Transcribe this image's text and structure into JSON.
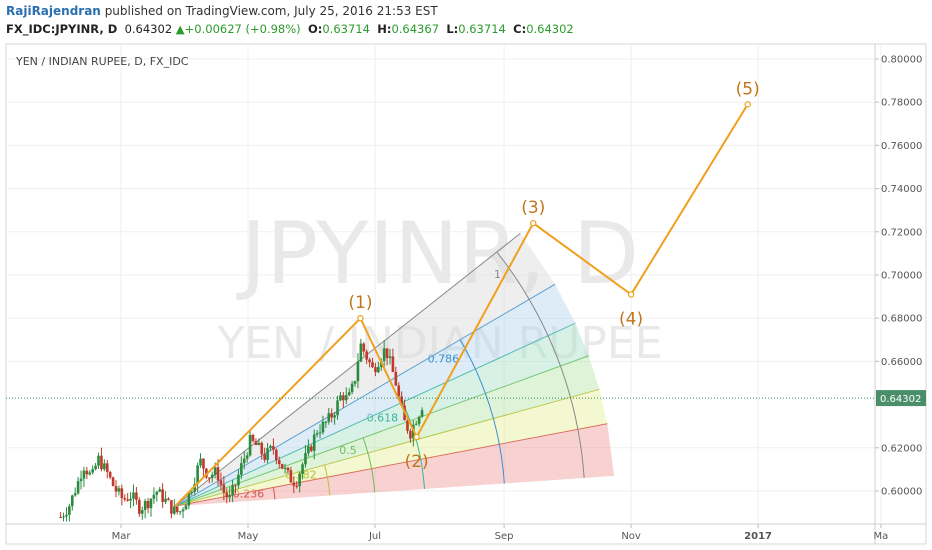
{
  "header": {
    "author": "RajiRajendran",
    "published_text": "published on TradingView.com, July 25, 2016 21:53 EST",
    "symbol": "FX_IDC:JPYINR, D",
    "last": "0.64302",
    "change": "+0.00627 (+0.98%)",
    "o_label": "O:",
    "o_value": "0.63714",
    "h_label": "H:",
    "h_value": "0.64367",
    "l_label": "L:",
    "l_value": "0.63714",
    "c_label": "C:",
    "c_value": "0.64302"
  },
  "pane": {
    "title": "YEN / INDIAN RUPEE, D, FX_IDC",
    "watermark_symbol": "JPYINR, D",
    "watermark_name": "YEN / INDIAN RUPEE"
  },
  "colors": {
    "up": "#2b8a3e",
    "down": "#c0392b",
    "wave": "#f0a01e",
    "price_line": "#2e8b57",
    "price_tag": "#4a8f6a"
  },
  "chart_data": {
    "type": "candlestick",
    "title": "YEN / INDIAN RUPEE, D, FX_IDC",
    "x_ticks": [
      "Mar",
      "May",
      "Jul",
      "Sep",
      "Nov",
      "2017",
      "Ma"
    ],
    "y_ticks": [
      "0.80000",
      "0.78000",
      "0.76000",
      "0.74000",
      "0.72000",
      "0.70000",
      "0.68000",
      "0.66000",
      "0.62000",
      "0.60000"
    ],
    "ylim": [
      0.585,
      0.805
    ],
    "last_price": "0.64302",
    "price_path": [
      [
        "2016-02-01",
        0.588
      ],
      [
        "2016-02-05",
        0.593
      ],
      [
        "2016-02-09",
        0.603
      ],
      [
        "2016-02-12",
        0.612
      ],
      [
        "2016-02-16",
        0.606
      ],
      [
        "2016-02-19",
        0.615
      ],
      [
        "2016-02-23",
        0.609
      ],
      [
        "2016-02-27",
        0.601
      ],
      [
        "2016-03-02",
        0.596
      ],
      [
        "2016-03-06",
        0.598
      ],
      [
        "2016-03-10",
        0.592
      ],
      [
        "2016-03-14",
        0.595
      ],
      [
        "2016-03-18",
        0.6
      ],
      [
        "2016-03-22",
        0.596
      ],
      [
        "2016-03-26",
        0.591
      ],
      [
        "2016-03-29",
        0.59
      ],
      [
        "2016-04-01",
        0.595
      ],
      [
        "2016-04-04",
        0.602
      ],
      [
        "2016-04-08",
        0.614
      ],
      [
        "2016-04-12",
        0.607
      ],
      [
        "2016-04-16",
        0.609
      ],
      [
        "2016-04-19",
        0.6
      ],
      [
        "2016-04-22",
        0.596
      ],
      [
        "2016-04-25",
        0.603
      ],
      [
        "2016-04-28",
        0.612
      ],
      [
        "2016-05-02",
        0.623
      ],
      [
        "2016-05-05",
        0.621
      ],
      [
        "2016-05-09",
        0.616
      ],
      [
        "2016-05-13",
        0.62
      ],
      [
        "2016-05-17",
        0.612
      ],
      [
        "2016-05-21",
        0.606
      ],
      [
        "2016-05-24",
        0.604
      ],
      [
        "2016-05-27",
        0.612
      ],
      [
        "2016-05-31",
        0.62
      ],
      [
        "2016-06-03",
        0.628
      ],
      [
        "2016-06-07",
        0.631
      ],
      [
        "2016-06-11",
        0.636
      ],
      [
        "2016-06-15",
        0.645
      ],
      [
        "2016-06-18",
        0.642
      ],
      [
        "2016-06-21",
        0.65
      ],
      [
        "2016-06-24",
        0.668
      ],
      [
        "2016-06-27",
        0.662
      ],
      [
        "2016-06-30",
        0.656
      ],
      [
        "2016-07-03",
        0.661
      ],
      [
        "2016-07-06",
        0.666
      ],
      [
        "2016-07-08",
        0.66
      ],
      [
        "2016-07-11",
        0.65
      ],
      [
        "2016-07-13",
        0.64
      ],
      [
        "2016-07-15",
        0.632
      ],
      [
        "2016-07-18",
        0.627
      ],
      [
        "2016-07-20",
        0.632
      ],
      [
        "2016-07-22",
        0.636
      ],
      [
        "2016-07-25",
        0.643
      ]
    ],
    "price_range": {
      "low": 0.586,
      "high": 0.672
    },
    "fib_fan": {
      "origin": [
        "2016-03-27",
        0.593
      ],
      "end": [
        "2016-09-15",
        0.724
      ],
      "levels": [
        "0.236",
        "0.382",
        "0.5",
        "0.618",
        "0.786",
        "1"
      ]
    },
    "elliott_wave": {
      "points": [
        {
          "label": "(1)",
          "date": "2016-06-24",
          "value": 0.68
        },
        {
          "label": "(2)",
          "date": "2016-07-21",
          "value": 0.625
        },
        {
          "label": "(3)",
          "date": "2016-09-15",
          "value": 0.724
        },
        {
          "label": "(4)",
          "date": "2016-11-01",
          "value": 0.691
        },
        {
          "label": "(5)",
          "date": "2016-12-27",
          "value": 0.779
        }
      ]
    }
  }
}
